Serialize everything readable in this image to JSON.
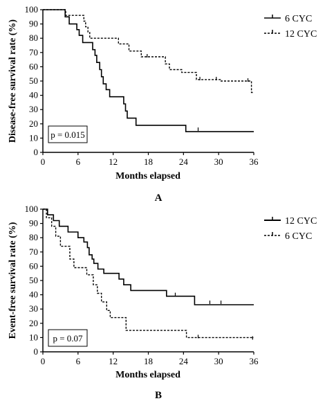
{
  "chart_data": [
    {
      "type": "line",
      "panel_label": "A",
      "xlabel": "Months elapsed",
      "ylabel": "Disease-free survival rate (%)",
      "xlim": [
        0,
        36
      ],
      "ylim": [
        0,
        100
      ],
      "xticks": [
        0,
        6,
        12,
        18,
        24,
        30,
        36
      ],
      "yticks": [
        0,
        10,
        20,
        30,
        40,
        50,
        60,
        70,
        80,
        90,
        100
      ],
      "grid": false,
      "legend_position": "top-right",
      "annotation": "p = 0.015",
      "series": [
        {
          "name": "6 CYC",
          "style": "solid",
          "color": "#000000",
          "points": [
            [
              0,
              100
            ],
            [
              3.8,
              100
            ],
            [
              3.8,
              95
            ],
            [
              4.5,
              95
            ],
            [
              4.5,
              90
            ],
            [
              5.8,
              90
            ],
            [
              5.8,
              86
            ],
            [
              6.2,
              86
            ],
            [
              6.2,
              82
            ],
            [
              6.8,
              82
            ],
            [
              6.8,
              77
            ],
            [
              8.5,
              77
            ],
            [
              8.5,
              72
            ],
            [
              8.9,
              72
            ],
            [
              8.9,
              68
            ],
            [
              9.2,
              68
            ],
            [
              9.2,
              63
            ],
            [
              9.7,
              63
            ],
            [
              9.7,
              58
            ],
            [
              10.0,
              58
            ],
            [
              10.0,
              53
            ],
            [
              10.3,
              53
            ],
            [
              10.3,
              48
            ],
            [
              10.8,
              48
            ],
            [
              10.8,
              44
            ],
            [
              11.4,
              44
            ],
            [
              11.4,
              39
            ],
            [
              13.8,
              39
            ],
            [
              13.8,
              34
            ],
            [
              14.1,
              34
            ],
            [
              14.1,
              29
            ],
            [
              14.4,
              29
            ],
            [
              14.4,
              24
            ],
            [
              15.9,
              24
            ],
            [
              15.9,
              19
            ],
            [
              24.4,
              19
            ],
            [
              24.4,
              14.5
            ],
            [
              36,
              14.5
            ]
          ],
          "censored": [
            [
              26.5,
              15.5
            ]
          ]
        },
        {
          "name": "12 CYC",
          "style": "dashed",
          "color": "#000000",
          "points": [
            [
              0,
              100
            ],
            [
              3.9,
              100
            ],
            [
              3.9,
              96
            ],
            [
              7.0,
              96
            ],
            [
              7.0,
              92
            ],
            [
              7.3,
              92
            ],
            [
              7.3,
              88
            ],
            [
              7.7,
              88
            ],
            [
              7.7,
              84
            ],
            [
              8.0,
              84
            ],
            [
              8.0,
              80
            ],
            [
              12.9,
              80
            ],
            [
              12.9,
              76
            ],
            [
              14.7,
              76
            ],
            [
              14.7,
              71
            ],
            [
              16.8,
              71
            ],
            [
              16.8,
              67
            ],
            [
              20.9,
              67
            ],
            [
              20.9,
              62
            ],
            [
              21.6,
              62
            ],
            [
              21.6,
              58
            ],
            [
              23.7,
              58
            ],
            [
              23.7,
              56
            ],
            [
              26.2,
              56
            ],
            [
              26.2,
              51
            ],
            [
              30.3,
              51
            ],
            [
              30.3,
              50
            ],
            [
              35.6,
              50
            ],
            [
              35.6,
              42
            ],
            [
              36,
              42
            ]
          ],
          "censored": [
            [
              17.8,
              67
            ],
            [
              26.8,
              51
            ],
            [
              29.6,
              51
            ],
            [
              35.0,
              50
            ]
          ]
        }
      ]
    },
    {
      "type": "line",
      "panel_label": "B",
      "xlabel": "Months elapsed",
      "ylabel": "Event-free survival rate (%)",
      "xlim": [
        0,
        36
      ],
      "ylim": [
        0,
        100
      ],
      "xticks": [
        0,
        6,
        12,
        18,
        24,
        30,
        36
      ],
      "yticks": [
        0,
        10,
        20,
        30,
        40,
        50,
        60,
        70,
        80,
        90,
        100
      ],
      "grid": false,
      "legend_position": "top-right",
      "annotation": "p = 0.07",
      "series": [
        {
          "name": "12 CYC",
          "style": "solid",
          "color": "#000000",
          "points": [
            [
              0,
              100
            ],
            [
              0.8,
              100
            ],
            [
              0.8,
              96
            ],
            [
              1.8,
              96
            ],
            [
              1.8,
              92
            ],
            [
              2.8,
              92
            ],
            [
              2.8,
              88
            ],
            [
              4.3,
              88
            ],
            [
              4.3,
              84
            ],
            [
              6.0,
              84
            ],
            [
              6.0,
              80
            ],
            [
              7.0,
              80
            ],
            [
              7.0,
              77
            ],
            [
              7.6,
              77
            ],
            [
              7.6,
              73
            ],
            [
              7.9,
              73
            ],
            [
              7.9,
              68
            ],
            [
              8.4,
              68
            ],
            [
              8.4,
              65
            ],
            [
              8.7,
              65
            ],
            [
              8.7,
              62
            ],
            [
              9.4,
              62
            ],
            [
              9.4,
              58
            ],
            [
              10.4,
              58
            ],
            [
              10.4,
              55
            ],
            [
              13.0,
              55
            ],
            [
              13.0,
              51
            ],
            [
              13.8,
              51
            ],
            [
              13.8,
              47
            ],
            [
              15.0,
              47
            ],
            [
              15.0,
              43
            ],
            [
              21.1,
              43
            ],
            [
              21.1,
              39
            ],
            [
              25.9,
              39
            ],
            [
              25.9,
              33
            ],
            [
              36,
              33
            ]
          ],
          "censored": [
            [
              22.6,
              39.5
            ],
            [
              28.5,
              34
            ],
            [
              30.4,
              34
            ]
          ]
        },
        {
          "name": "6 CYC",
          "style": "dashed",
          "color": "#000000",
          "points": [
            [
              0,
              100
            ],
            [
              0.6,
              100
            ],
            [
              0.6,
              94
            ],
            [
              1.5,
              94
            ],
            [
              1.5,
              88
            ],
            [
              2.2,
              88
            ],
            [
              2.2,
              81
            ],
            [
              3.0,
              81
            ],
            [
              3.0,
              74
            ],
            [
              4.6,
              74
            ],
            [
              4.6,
              65
            ],
            [
              5.3,
              65
            ],
            [
              5.3,
              59
            ],
            [
              7.5,
              59
            ],
            [
              7.5,
              54
            ],
            [
              8.6,
              54
            ],
            [
              8.6,
              47
            ],
            [
              9.3,
              47
            ],
            [
              9.3,
              41
            ],
            [
              10.0,
              41
            ],
            [
              10.0,
              35
            ],
            [
              10.9,
              35
            ],
            [
              10.9,
              29
            ],
            [
              11.5,
              29
            ],
            [
              11.5,
              24
            ],
            [
              14.2,
              24
            ],
            [
              14.2,
              15
            ],
            [
              24.5,
              15
            ],
            [
              24.5,
              10
            ],
            [
              36,
              10
            ]
          ],
          "censored": [
            [
              26.5,
              10
            ],
            [
              35.8,
              9
            ]
          ]
        }
      ]
    }
  ]
}
